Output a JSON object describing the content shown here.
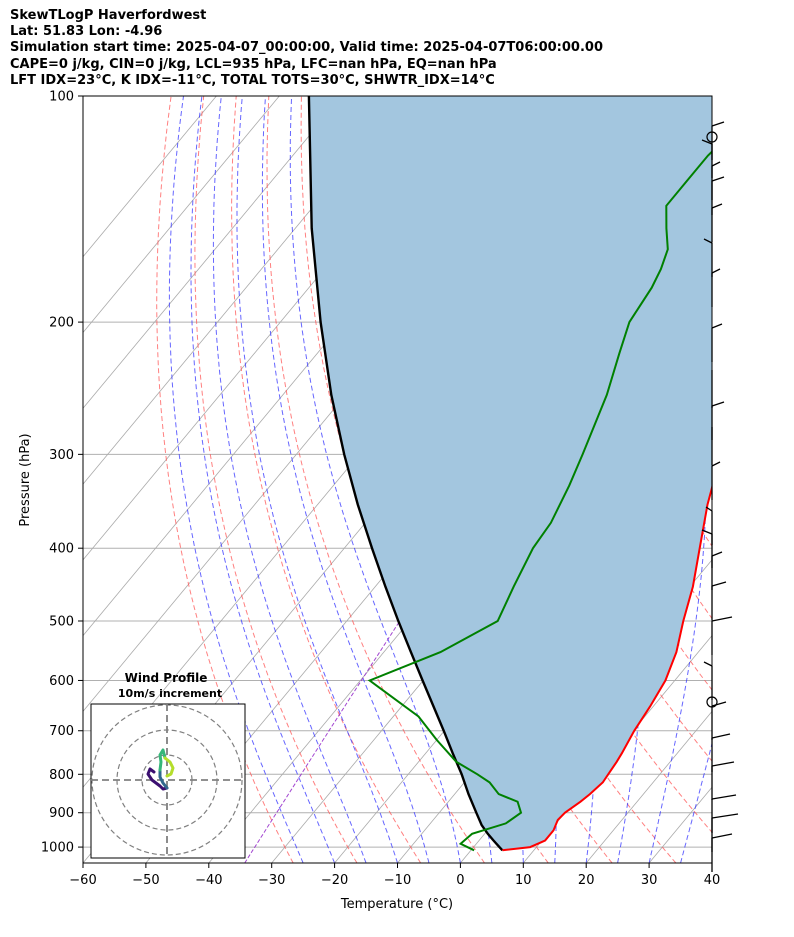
{
  "header": {
    "line1": "SkewTLogP Haverfordwest",
    "line2": "Lat: 51.83   Lon: -4.96",
    "line3": "Simulation start time: 2025-04-07_00:00:00, Valid time: 2025-04-07T06:00:00.00",
    "line4": "CAPE=0 j/kg, CIN=0 j/kg, LCL=935 hPa, LFC=nan hPa, EQ=nan hPa",
    "line5": "LFT IDX=23°C, K IDX=-11°C, TOTAL TOTS=30°C, SHWTR_IDX=14°C"
  },
  "chart_data": {
    "type": "line",
    "subtype": "skew-T log-P diagram",
    "xlabel": "Temperature (°C)",
    "ylabel": "Pressure (hPa)",
    "xlim": [
      -60,
      40
    ],
    "ylim": [
      1050,
      100
    ],
    "y_scale": "log",
    "grid": true,
    "x_ticks": [
      -60,
      -50,
      -40,
      -30,
      -20,
      -10,
      0,
      10,
      20,
      30,
      40
    ],
    "x_tick_labels": [
      "−60",
      "−50",
      "−40",
      "−30",
      "−20",
      "−10",
      "0",
      "10",
      "20",
      "30",
      "40"
    ],
    "y_ticks": [
      1000,
      900,
      800,
      700,
      600,
      500,
      400,
      300,
      200,
      100
    ],
    "y_tick_labels": [
      "1000",
      "900",
      "800",
      "700",
      "600",
      "500",
      "400",
      "300",
      "200",
      "100"
    ],
    "colors": {
      "temperature": "#ff0000",
      "dewpoint": "#008000",
      "parcel": "#000000",
      "shading": "#a3c6df",
      "dry_adiabats": "#ff5555",
      "moist_adiabats": "#3333ff",
      "isotherms": "#aaaaaa",
      "mixing_ratio": "#9933cc"
    },
    "series": [
      {
        "role": "temperature",
        "pressure": [
          1010,
          1000,
          980,
          950,
          920,
          900,
          870,
          850,
          820,
          800,
          770,
          750,
          700,
          650,
          600,
          550,
          500,
          450,
          400,
          350,
          300,
          280,
          250,
          220,
          200,
          190,
          180,
          170,
          160,
          150,
          140,
          130,
          120,
          110,
          100
        ],
        "temperature": [
          5.0,
          9.0,
          10.5,
          10.5,
          9.8,
          10.0,
          11.0,
          11.5,
          12.0,
          11.8,
          11.5,
          11.2,
          10.2,
          9.5,
          8.5,
          6.5,
          3.5,
          0.5,
          -3.5,
          -8.0,
          -12.5,
          -14.5,
          -17.0,
          -19.5,
          -21.0,
          -21.3,
          -20.5,
          -19.0,
          -16.5,
          -13.5,
          -11.5,
          -9.5,
          -8.0,
          -6.5,
          -5.5
        ]
      },
      {
        "role": "dewpoint",
        "pressure": [
          1010,
          990,
          960,
          930,
          900,
          870,
          850,
          820,
          800,
          770,
          720,
          670,
          600,
          550,
          500,
          450,
          400,
          370,
          330,
          300,
          250,
          220,
          200,
          190,
          180,
          170,
          160,
          150,
          140,
          130,
          120,
          110,
          100
        ],
        "temperature": [
          0.5,
          -2.5,
          -2.0,
          2.0,
          3.0,
          1.0,
          -3.0,
          -6.0,
          -9.0,
          -14.0,
          -20.0,
          -26.0,
          -38.5,
          -31.0,
          -26.0,
          -28.0,
          -30.0,
          -30.5,
          -32.5,
          -34.5,
          -38.5,
          -42.0,
          -44.5,
          -45.0,
          -45.5,
          -46.5,
          -48.0,
          -51.0,
          -54.0,
          -54.0,
          -54.0,
          -53.0,
          -52.0
        ]
      },
      {
        "role": "parcel",
        "pressure": [
          1010,
          1000,
          980,
          960,
          935,
          900,
          850,
          800,
          750,
          700,
          650,
          600,
          550,
          500,
          450,
          400,
          350,
          300,
          250,
          200,
          150,
          100
        ],
        "temperature": [
          5.0,
          4.1,
          2.3,
          0.5,
          -1.6,
          -4.1,
          -7.8,
          -11.5,
          -15.7,
          -20.1,
          -24.9,
          -30.1,
          -35.7,
          -41.8,
          -48.4,
          -55.6,
          -63.6,
          -72.4,
          -82.3,
          -93.6,
          -107.4,
          -125.3
        ]
      }
    ],
    "inset": {
      "title": "Wind Profile",
      "subtitle": "10m/s increment"
    }
  }
}
